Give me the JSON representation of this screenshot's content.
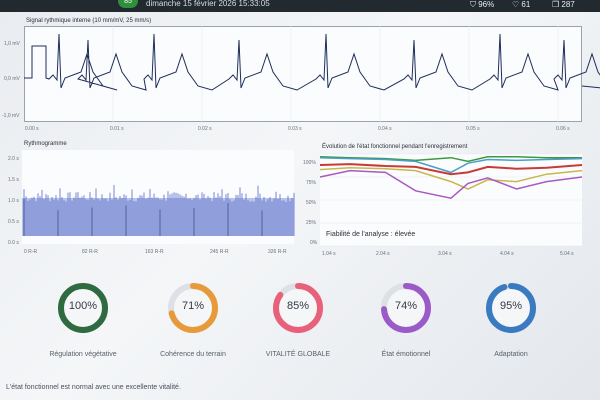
{
  "header": {
    "badge": "85",
    "date": "dimanche 15 février 2026 15:33:05",
    "battery": "96%",
    "likes": "61",
    "count": "287"
  },
  "ecg": {
    "title": "Signal rythmique interne (10 mm/mV, 25 mm/s)",
    "y_ticks": [
      "1,0 mV",
      "0,0 mV",
      "-1,0 mV"
    ],
    "x_ticks": [
      "0.00 s",
      "0.01 s",
      "0.02 s",
      "0.03 s",
      "0.04 s",
      "0.05 s",
      "0.06 s"
    ]
  },
  "rhythm": {
    "title": "Rythmogramme",
    "y_ticks": [
      "2.0 s",
      "1.5 s",
      "1.0 s",
      "0.5 s",
      "0.0 s"
    ],
    "x_ticks": [
      "0 R-R",
      "82 R-R",
      "163 R-R",
      "245 R-R",
      "326 R-R"
    ]
  },
  "evolution": {
    "title": "Évolution de l'état fonctionnel pendant l'enregistrement",
    "y_ticks": [
      "100%",
      "75%",
      "50%",
      "25%",
      "0%"
    ],
    "x_ticks": [
      "1.04 s",
      "2.04 s",
      "3.04 s",
      "4.04 s",
      "5.04 s"
    ],
    "reliability": "Fiabilité de l'analyse : élevée"
  },
  "chart_data": {
    "type": "line",
    "title": "Évolution de l'état fonctionnel pendant l'enregistrement",
    "x": [
      1.04,
      1.5,
      2.04,
      2.5,
      3.04,
      3.3,
      3.6,
      4.04,
      4.5,
      5.04
    ],
    "ylim": [
      0,
      100
    ],
    "series": [
      {
        "color": "#3a9a3e",
        "values": [
          97,
          96,
          95,
          93,
          96,
          92,
          97,
          97,
          96,
          96
        ]
      },
      {
        "color": "#4a9ec8",
        "values": [
          96,
          95,
          94,
          92,
          80,
          90,
          94,
          93,
          94,
          95
        ]
      },
      {
        "color": "#c83a36",
        "values": [
          88,
          89,
          87,
          86,
          78,
          80,
          86,
          84,
          85,
          88
        ]
      },
      {
        "color": "#c8b84a",
        "values": [
          83,
          85,
          84,
          82,
          70,
          62,
          72,
          70,
          78,
          82
        ]
      },
      {
        "color": "#a85ac0",
        "values": [
          75,
          82,
          80,
          60,
          52,
          68,
          74,
          62,
          70,
          75
        ]
      }
    ]
  },
  "gauges": [
    {
      "value": "100%",
      "pct": 100,
      "label": "Régulation végétative",
      "color": "#2f6a40"
    },
    {
      "value": "71%",
      "pct": 71,
      "label": "Cohérence du terrain",
      "color": "#e89a3a"
    },
    {
      "value": "85%",
      "pct": 85,
      "label": "VITALITÉ GLOBALE",
      "color": "#e8607a"
    },
    {
      "value": "74%",
      "pct": 74,
      "label": "État émotionnel",
      "color": "#9a5ac8"
    },
    {
      "value": "95%",
      "pct": 95,
      "label": "Adaptation",
      "color": "#3a7ac0"
    }
  ],
  "footer": "L'état fonctionnel est normal avec une excellente vitalité."
}
